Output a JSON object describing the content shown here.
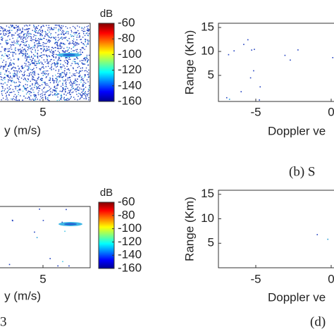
{
  "panels": [
    {
      "x_ticks": [
        5
      ],
      "x_label": "y (m/s)",
      "colorbar": {
        "label": "dB",
        "ticks": [
          -60,
          -80,
          -100,
          -120,
          -140,
          -160
        ]
      }
    },
    {
      "y_label": "Range (Km)",
      "y_ticks": [
        15,
        10,
        5
      ],
      "x_ticks": [
        -5,
        0
      ],
      "x_label": "Doppler ve",
      "caption": "(b) S"
    },
    {
      "x_ticks": [
        5
      ],
      "x_label": "y (m/s)",
      "colorbar": {
        "label": "dB",
        "ticks": [
          -60,
          -80,
          -100,
          -120,
          -140,
          -160
        ]
      },
      "caption": "3"
    },
    {
      "y_label": "Range (Km)",
      "y_ticks": [
        15,
        10,
        5
      ],
      "x_ticks": [
        -5,
        0
      ],
      "x_label": "Doppler ve",
      "caption": "(d)"
    }
  ]
}
